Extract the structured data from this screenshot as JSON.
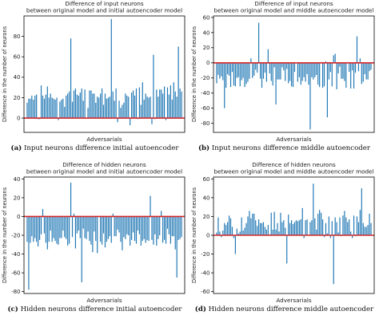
{
  "chart_data": [
    {
      "type": "bar",
      "title": "Difference of input neurons\nbetween original model and initial autoencoder model",
      "xlabel": "Adversarials",
      "ylabel": "Difference in the number of neurons",
      "ylim": [
        -14,
        100
      ],
      "yticks": [
        0,
        20,
        40,
        60,
        80
      ],
      "n_bars": 100,
      "seed": 11,
      "bar_dist": {
        "mode": "pos",
        "base": 22,
        "spread": 14
      },
      "extremes": [
        {
          "i": 54,
          "v": 97
        },
        {
          "i": 28,
          "v": 78
        },
        {
          "i": 81,
          "v": 62
        },
        {
          "i": 97,
          "v": 70
        },
        {
          "i": 66,
          "v": -7
        },
        {
          "i": 80,
          "v": -6
        }
      ],
      "bar_color": "#1f77b4",
      "zero_line_color": "#d62728",
      "caption_letter": "(a)",
      "caption_text": "Input neurons difference initial autoencoder"
    },
    {
      "type": "bar",
      "title": "Difference of input neurons\nbetween original model and middle autoencoder model",
      "xlabel": "Adversarials",
      "ylabel": "Difference in the number of neurons",
      "ylim": [
        -92,
        62
      ],
      "yticks": [
        -80,
        -60,
        -40,
        -20,
        0,
        20,
        40,
        60
      ],
      "n_bars": 100,
      "seed": 23,
      "bar_dist": {
        "mode": "neg",
        "base": -20,
        "spread": 18
      },
      "extremes": [
        {
          "i": 27,
          "v": 53
        },
        {
          "i": 33,
          "v": 18
        },
        {
          "i": 90,
          "v": 35
        },
        {
          "i": 76,
          "v": 12
        },
        {
          "i": 60,
          "v": -88
        },
        {
          "i": 71,
          "v": -72
        },
        {
          "i": 5,
          "v": -60
        },
        {
          "i": 38,
          "v": -55
        }
      ],
      "bar_color": "#1f77b4",
      "zero_line_color": "#d62728",
      "caption_letter": "(b)",
      "caption_text": "Input neurons difference middle autoencoder"
    },
    {
      "type": "bar",
      "title": "Difference of hidden neurons\nbetween original model and initial autoencoder model",
      "xlabel": "Adversarials",
      "ylabel": "Difference in the number of neurons",
      "ylim": [
        -82,
        42
      ],
      "yticks": [
        -80,
        -60,
        -40,
        -20,
        0,
        20,
        40
      ],
      "n_bars": 100,
      "seed": 37,
      "bar_dist": {
        "mode": "neg",
        "base": -25,
        "spread": 15
      },
      "extremes": [
        {
          "i": 28,
          "v": 36
        },
        {
          "i": 79,
          "v": 22
        },
        {
          "i": 1,
          "v": -78
        },
        {
          "i": 35,
          "v": -70
        },
        {
          "i": 96,
          "v": -65
        }
      ],
      "bar_color": "#1f77b4",
      "zero_line_color": "#d62728",
      "caption_letter": "(c)",
      "caption_text": "Hidden neurons difference initial autoencoder"
    },
    {
      "type": "bar",
      "title": "Difference of hidden neurons\nbetween original model and middle autoencoder model",
      "xlabel": "Adversarials",
      "ylabel": "Difference in the number of neurons",
      "ylim": [
        -62,
        62
      ],
      "yticks": [
        -60,
        -40,
        -20,
        0,
        20,
        40,
        60
      ],
      "n_bars": 100,
      "seed": 53,
      "bar_dist": {
        "mode": "pos",
        "base": 14,
        "spread": 16
      },
      "extremes": [
        {
          "i": 62,
          "v": 55
        },
        {
          "i": 93,
          "v": 50
        },
        {
          "i": 75,
          "v": -52
        },
        {
          "i": 45,
          "v": -30
        },
        {
          "i": 12,
          "v": -20
        }
      ],
      "bar_color": "#1f77b4",
      "zero_line_color": "#d62728",
      "caption_letter": "(d)",
      "caption_text": "Hidden neurons difference middle autoencoder"
    }
  ]
}
